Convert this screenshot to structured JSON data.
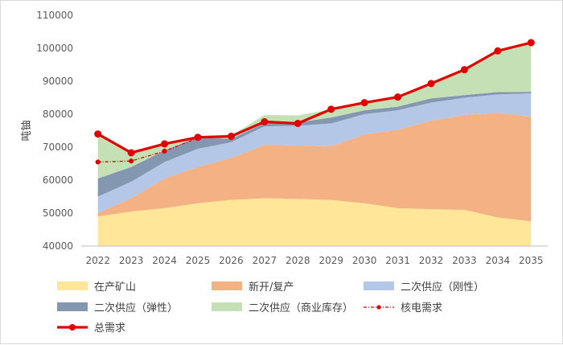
{
  "chart_data": {
    "type": "area",
    "ylabel": "吨铀",
    "ylim": [
      40000,
      110000
    ],
    "yticks": [
      40000,
      50000,
      60000,
      70000,
      80000,
      90000,
      100000,
      110000
    ],
    "x": [
      "2022",
      "2023",
      "2024",
      "2025",
      "2026",
      "2027",
      "2028",
      "2029",
      "2030",
      "2031",
      "2032",
      "2033",
      "2034",
      "2035"
    ],
    "stacked_areas": [
      {
        "name": "在产矿山",
        "color": "#FFE699",
        "values": [
          49000,
          50500,
          51500,
          53000,
          54000,
          54500,
          54300,
          54000,
          53000,
          51500,
          51200,
          51000,
          48700,
          47500
        ]
      },
      {
        "name": "新开/复产",
        "color": "#F4B183",
        "values": [
          1000,
          4000,
          9000,
          11000,
          12700,
          16200,
          16200,
          16200,
          20800,
          23800,
          26800,
          28800,
          31700,
          31800
        ]
      },
      {
        "name": "二次供应（刚性）",
        "color": "#B4C7E7",
        "values": [
          5000,
          5000,
          5000,
          5500,
          4800,
          5600,
          6000,
          7000,
          6200,
          5900,
          5500,
          5200,
          5600,
          7000
        ]
      },
      {
        "name": "二次供应（弹性）",
        "color": "#8497B0",
        "values": [
          5500,
          4500,
          3500,
          3500,
          1000,
          1000,
          1000,
          1800,
          1200,
          1100,
          1300,
          800,
          700,
          500
        ]
      },
      {
        "name": "二次供应（商业库存）",
        "color": "#C5E0B4",
        "values": [
          13500,
          4000,
          2000,
          0,
          1000,
          2500,
          2100,
          2500,
          2300,
          2900,
          4500,
          8000,
          12500,
          14700
        ]
      }
    ],
    "lines": [
      {
        "name": "核电需求",
        "color": "#E00000",
        "style": "dash-dot-marker",
        "values": [
          65500,
          65800,
          68800,
          72800,
          null,
          null,
          null,
          null,
          null,
          null,
          null,
          null,
          null,
          null
        ]
      },
      {
        "name": "总需求",
        "color": "#E00000",
        "style": "solid-marker",
        "values": [
          74000,
          68300,
          71000,
          73000,
          73300,
          77700,
          77200,
          81500,
          83500,
          85200,
          89300,
          93500,
          99200,
          101700
        ]
      }
    ],
    "legend_position": "bottom",
    "grid": false
  }
}
